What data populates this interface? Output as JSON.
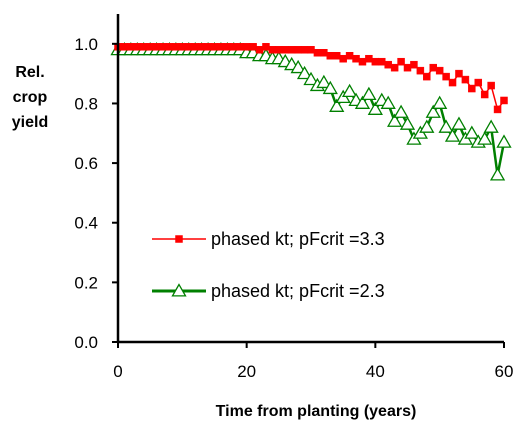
{
  "chart_data": {
    "type": "line",
    "xlabel": "Time from planting (years)",
    "ylabel": [
      "Rel.",
      "crop",
      "yield"
    ],
    "xlim": [
      0,
      60
    ],
    "ylim": [
      0,
      1.1
    ],
    "xticks": [
      0,
      20,
      40,
      60
    ],
    "yticks": [
      0,
      0.2,
      0.4,
      0.6,
      0.8,
      1.0
    ],
    "xtick_labels": [
      "0",
      "20",
      "40",
      "60"
    ],
    "ytick_labels": [
      "0.0",
      "0.2",
      "0.4",
      "0.6",
      "0.8",
      "1.0"
    ],
    "grid": false,
    "legend_position": "center",
    "series": [
      {
        "name": "phased kt; pFcrit =3.3",
        "color": "#ff0000",
        "marker": "square",
        "x": [
          0,
          1,
          2,
          3,
          4,
          5,
          6,
          7,
          8,
          9,
          10,
          11,
          12,
          13,
          14,
          15,
          16,
          17,
          18,
          19,
          20,
          21,
          22,
          23,
          24,
          25,
          26,
          27,
          28,
          29,
          30,
          31,
          32,
          33,
          34,
          35,
          36,
          37,
          38,
          39,
          40,
          41,
          42,
          43,
          44,
          45,
          46,
          47,
          48,
          49,
          50,
          51,
          52,
          53,
          54,
          55,
          56,
          57,
          58,
          59,
          60
        ],
        "y": [
          0.99,
          0.99,
          0.99,
          0.99,
          0.99,
          0.99,
          0.99,
          0.99,
          0.99,
          0.99,
          0.99,
          0.99,
          0.99,
          0.99,
          0.99,
          0.99,
          0.99,
          0.99,
          0.99,
          0.99,
          0.99,
          0.99,
          0.98,
          0.99,
          0.98,
          0.98,
          0.98,
          0.98,
          0.98,
          0.98,
          0.98,
          0.97,
          0.97,
          0.96,
          0.96,
          0.95,
          0.96,
          0.95,
          0.94,
          0.95,
          0.94,
          0.94,
          0.93,
          0.92,
          0.94,
          0.92,
          0.93,
          0.91,
          0.89,
          0.92,
          0.91,
          0.89,
          0.87,
          0.9,
          0.88,
          0.85,
          0.87,
          0.83,
          0.86,
          0.78,
          0.81
        ]
      },
      {
        "name": "phased kt; pFcrit =2.3",
        "color": "#008000",
        "marker": "triangle",
        "x": [
          0,
          1,
          2,
          3,
          4,
          5,
          6,
          7,
          8,
          9,
          10,
          11,
          12,
          13,
          14,
          15,
          16,
          17,
          18,
          19,
          20,
          21,
          22,
          23,
          24,
          25,
          26,
          27,
          28,
          29,
          30,
          31,
          32,
          33,
          34,
          35,
          36,
          37,
          38,
          39,
          40,
          41,
          42,
          43,
          44,
          45,
          46,
          47,
          48,
          49,
          50,
          51,
          52,
          53,
          54,
          55,
          56,
          57,
          58,
          59,
          60
        ],
        "y": [
          0.98,
          0.98,
          0.98,
          0.98,
          0.98,
          0.98,
          0.98,
          0.98,
          0.98,
          0.98,
          0.98,
          0.98,
          0.98,
          0.98,
          0.98,
          0.98,
          0.98,
          0.98,
          0.98,
          0.98,
          0.97,
          0.97,
          0.96,
          0.96,
          0.95,
          0.95,
          0.94,
          0.93,
          0.92,
          0.9,
          0.88,
          0.86,
          0.87,
          0.85,
          0.79,
          0.82,
          0.84,
          0.81,
          0.8,
          0.83,
          0.78,
          0.81,
          0.8,
          0.74,
          0.77,
          0.73,
          0.68,
          0.7,
          0.72,
          0.77,
          0.8,
          0.72,
          0.69,
          0.73,
          0.68,
          0.7,
          0.67,
          0.68,
          0.72,
          0.56,
          0.67
        ]
      }
    ]
  }
}
